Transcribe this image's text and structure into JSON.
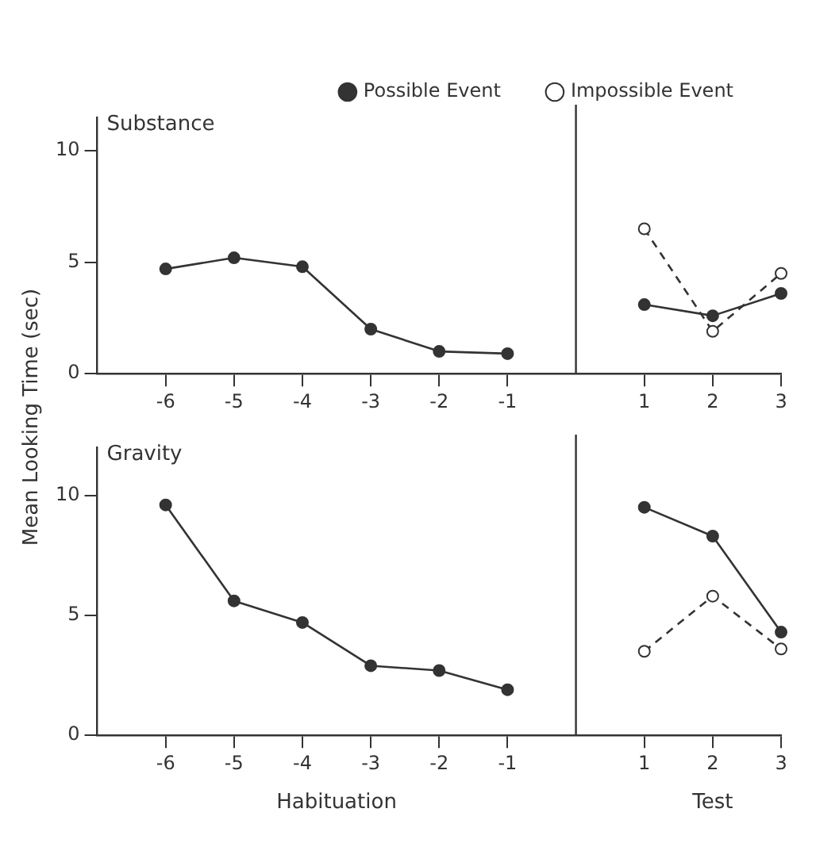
{
  "chart_data": [
    {
      "type": "line",
      "title": "Substance",
      "ylabel": "Mean Looking Time (sec)",
      "x": [
        -6,
        -5,
        -4,
        -3,
        -2,
        -1,
        0,
        1,
        2,
        3
      ],
      "series": [
        {
          "name": "Possible Event",
          "color": "#333333",
          "line_style": "solid",
          "values": [
            4.7,
            5.2,
            4.8,
            2.0,
            1.0,
            0.9,
            null,
            3.1,
            2.6,
            3.6
          ]
        },
        {
          "name": "Impossible Event",
          "color": "#333333",
          "line_style": "dashed",
          "values": [
            null,
            null,
            null,
            null,
            null,
            null,
            null,
            6.5,
            1.9,
            4.5
          ]
        }
      ],
      "xlim": [
        -7,
        3
      ],
      "xticks": [
        -6,
        -5,
        -4,
        -3,
        -2,
        -1,
        1,
        2,
        3
      ],
      "ylim": [
        0,
        11.5
      ],
      "yticks": [
        0,
        5,
        10
      ],
      "ref_lines": [
        {
          "axis": "x",
          "value": 0
        }
      ],
      "grid": false,
      "legend": "top",
      "marker": "circle"
    },
    {
      "type": "line",
      "title": "Gravity",
      "xlabel": "Habituation",
      "annotations": [
        "Test"
      ],
      "x": [
        -6,
        -5,
        -4,
        -3,
        -2,
        -1,
        0,
        1,
        2,
        3
      ],
      "series": [
        {
          "color": "#333333",
          "line_style": "solid",
          "values": [
            9.6,
            5.6,
            4.7,
            2.9,
            2.7,
            1.9,
            null,
            9.5,
            8.3,
            4.3
          ]
        },
        {
          "color": "#333333",
          "line_style": "dashed",
          "values": [
            null,
            null,
            null,
            null,
            null,
            null,
            null,
            3.5,
            5.8,
            3.6
          ]
        }
      ],
      "xlim": [
        -7,
        3
      ],
      "xticks": [
        -6,
        -5,
        -4,
        -3,
        -2,
        -1,
        1,
        2,
        3
      ],
      "ylim": [
        0,
        12
      ],
      "yticks": [
        0,
        5,
        10
      ],
      "ref_lines": [
        {
          "axis": "x",
          "value": 0
        }
      ],
      "grid": false,
      "legend": false,
      "marker": "circle"
    }
  ]
}
